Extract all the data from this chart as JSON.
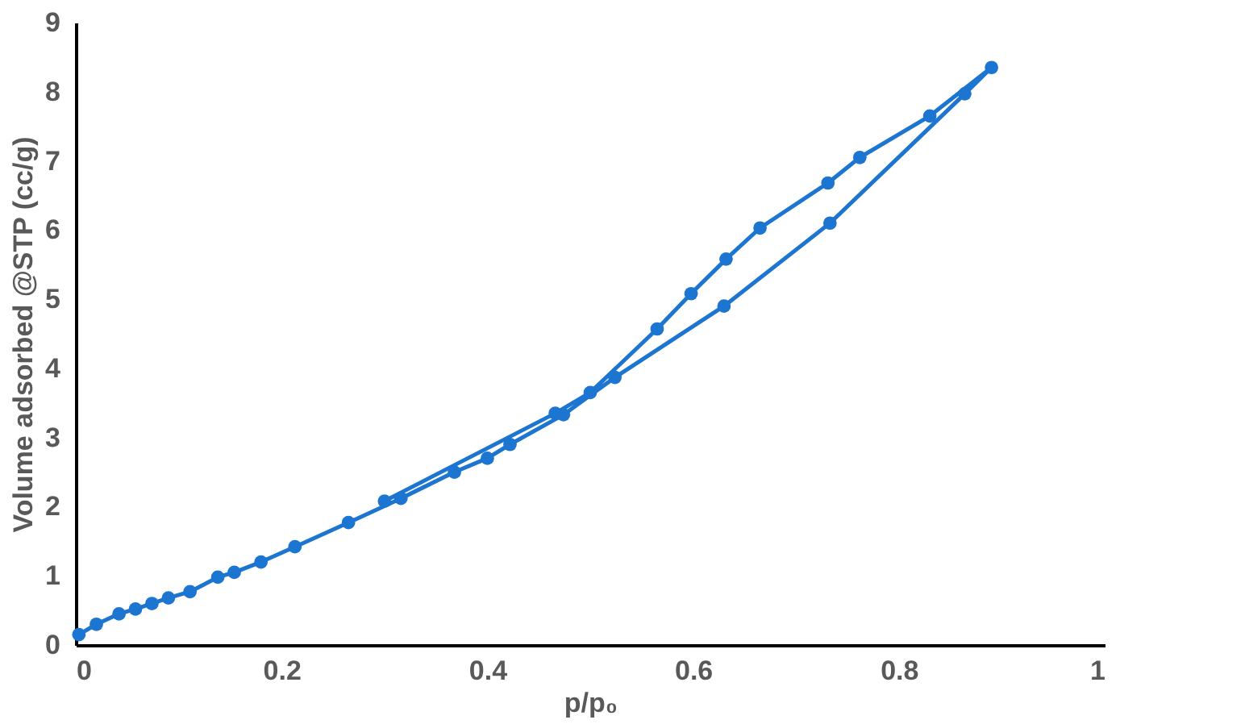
{
  "chart_data": {
    "type": "line",
    "xlabel": "p/p₀",
    "ylabel": "Volume adsorbed @STP (cc/g)",
    "series": [
      {
        "color": "#1c75d0",
        "x": [
          0.003,
          0.02,
          0.042,
          0.058,
          0.074,
          0.09,
          0.111,
          0.138,
          0.154,
          0.18,
          0.213,
          0.265,
          0.316,
          0.368,
          0.4,
          0.422,
          0.474,
          0.524,
          0.63,
          0.733,
          0.864,
          0.89,
          0.83,
          0.762,
          0.731,
          0.665,
          0.632,
          0.598,
          0.565,
          0.5,
          0.466,
          0.3
        ],
        "values": [
          0.15,
          0.3,
          0.45,
          0.52,
          0.6,
          0.68,
          0.77,
          0.98,
          1.05,
          1.2,
          1.42,
          1.77,
          2.12,
          2.5,
          2.7,
          2.9,
          3.33,
          3.87,
          4.9,
          6.1,
          7.97,
          8.35,
          7.65,
          7.05,
          6.68,
          6.03,
          5.58,
          5.08,
          4.57,
          3.65,
          3.35,
          2.08
        ]
      }
    ],
    "xlim": [
      0,
      1
    ],
    "xticks": [
      0,
      0.2,
      0.4,
      0.6,
      0.8,
      1
    ],
    "ylim": [
      0,
      9
    ],
    "yticks": [
      0,
      1,
      2,
      3,
      4,
      5,
      6,
      7,
      8,
      9
    ],
    "grid": false,
    "legend": false,
    "marker": "circle",
    "line_style": "solid"
  }
}
